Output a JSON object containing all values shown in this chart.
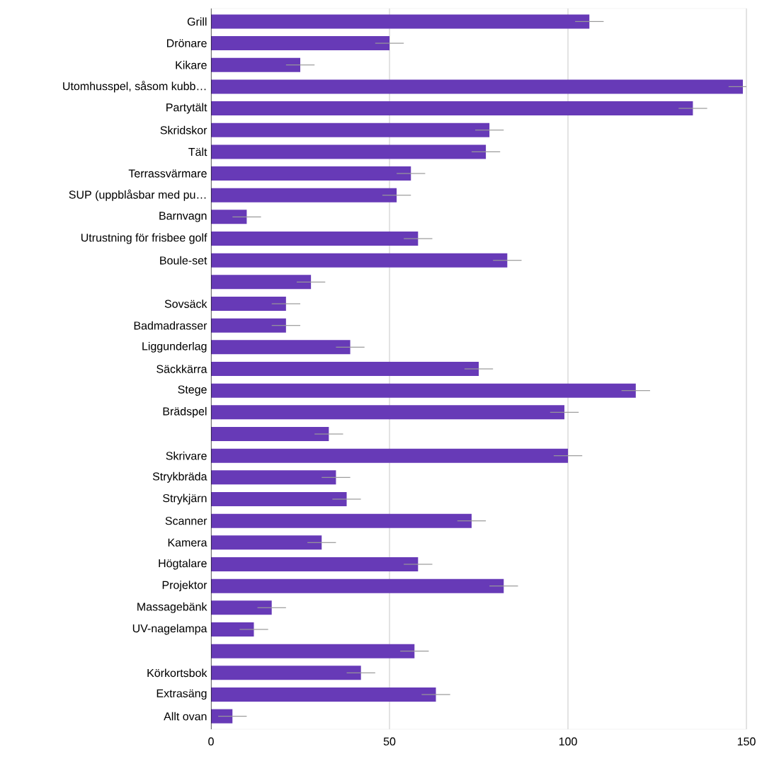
{
  "chart_data": {
    "type": "bar",
    "orientation": "horizontal",
    "categories": [
      "Grill",
      "Drönare",
      "Kikare",
      "Utomhusspel, såsom kubb…",
      "Partytält",
      "Skridskor",
      "Tält",
      "Terrassvärmare",
      "SUP (uppblåsbar med pu…",
      "Barnvagn",
      "Utrustning för frisbee golf",
      "Boule-set",
      null,
      "Sovsäck",
      "Badmadrasser",
      "Liggunderlag",
      "Säckkärra",
      "Stege",
      "Brädspel",
      null,
      "Skrivare",
      "Strykbräda",
      "Strykjärn",
      "Scanner",
      "Kamera",
      "Högtalare",
      "Projektor",
      "Massagebänk",
      "UV-nagelampa",
      null,
      "Körkortsbok",
      "Extrasäng",
      "Allt ovan"
    ],
    "values": [
      106,
      50,
      25,
      149,
      135,
      78,
      77,
      56,
      52,
      10,
      58,
      83,
      28,
      21,
      21,
      39,
      75,
      119,
      99,
      33,
      100,
      35,
      38,
      73,
      31,
      58,
      82,
      17,
      12,
      57,
      42,
      63,
      6
    ],
    "errors": [
      4,
      4,
      4,
      4,
      4,
      4,
      4,
      4,
      4,
      4,
      4,
      4,
      4,
      4,
      4,
      4,
      4,
      4,
      4,
      4,
      4,
      4,
      4,
      4,
      4,
      4,
      4,
      4,
      4,
      4,
      4,
      4,
      4
    ],
    "color": "#673ab7",
    "xlim": [
      0,
      150
    ],
    "xticks": [
      0,
      50,
      100,
      150
    ],
    "grid": "x"
  }
}
